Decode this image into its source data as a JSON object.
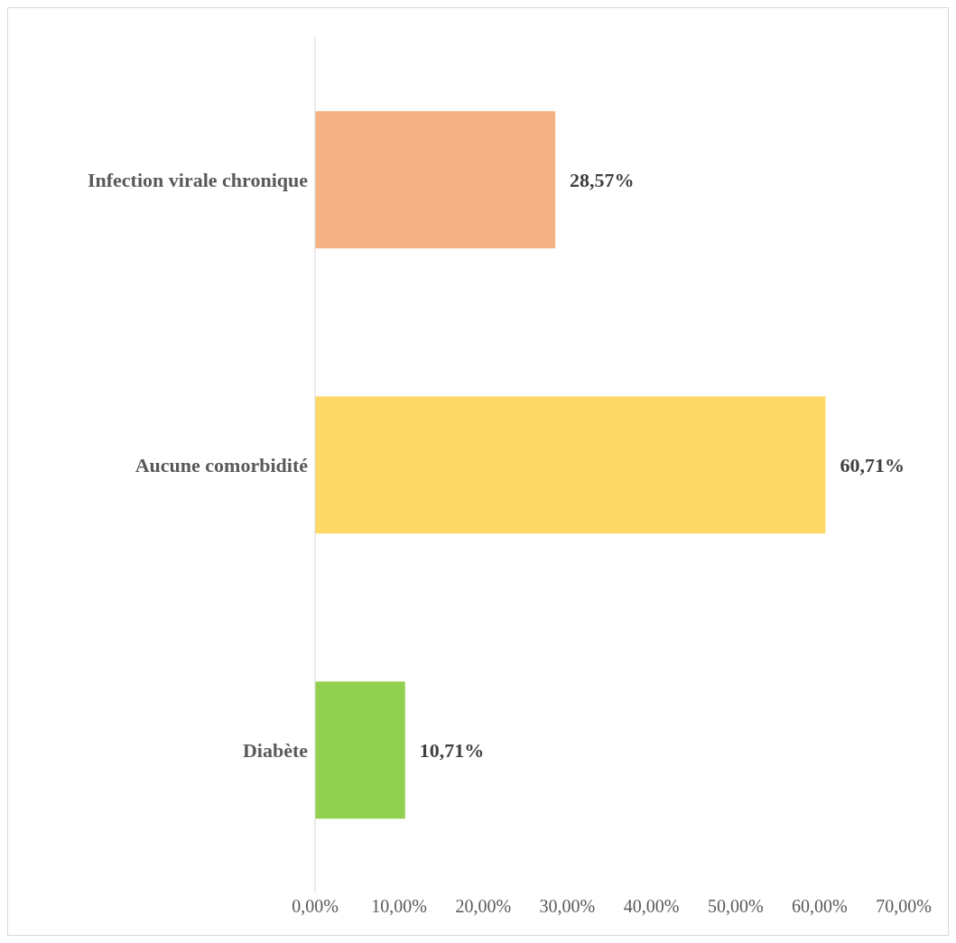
{
  "chart_data": {
    "type": "bar",
    "orientation": "horizontal",
    "categories": [
      "Infection virale chronique",
      "Aucune comorbidité",
      "Diabète"
    ],
    "values": [
      28.57,
      60.71,
      10.71
    ],
    "colors": [
      "#f4b183",
      "#ffd966",
      "#92d050"
    ],
    "value_labels": [
      "28,57%",
      "60,71%",
      "10,71%"
    ],
    "xlim": [
      0,
      70
    ],
    "xticks": [
      {
        "value": 0,
        "label": "0,00%"
      },
      {
        "value": 10,
        "label": "10,00%"
      },
      {
        "value": 20,
        "label": "20,00%"
      },
      {
        "value": 30,
        "label": "30,00%"
      },
      {
        "value": 40,
        "label": "40,00%"
      },
      {
        "value": 50,
        "label": "50,00%"
      },
      {
        "value": 60,
        "label": "60,00%"
      },
      {
        "value": 70,
        "label": "70,00%"
      }
    ],
    "grid": false,
    "legend": false
  }
}
